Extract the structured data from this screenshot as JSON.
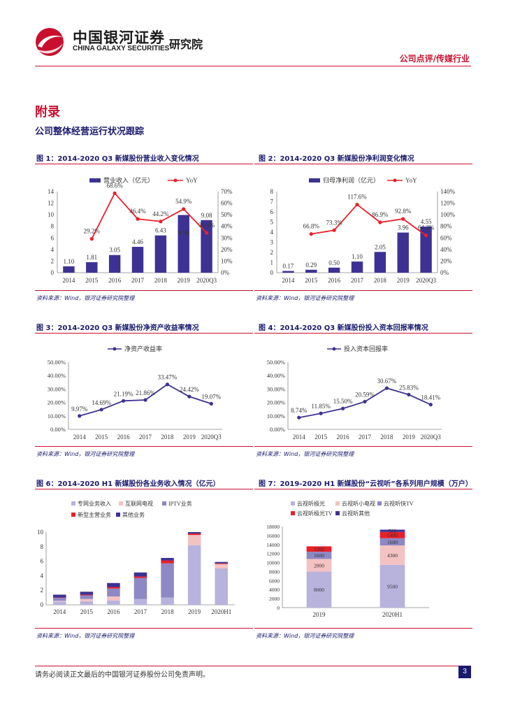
{
  "header": {
    "brand_cn": "中国银河证券",
    "brand_en": "CHINA GALAXY SECURITIES",
    "institute": "研究院",
    "tag": "公司点评/传媒行业"
  },
  "section": {
    "title": "附录",
    "subtitle": "公司整体经营运行状况跟踪"
  },
  "footer": {
    "disclaimer": "请务必阅读正文最后的中国银河证券股份公司免责声明。",
    "page": "3"
  },
  "colors": {
    "navy": "#3d3294",
    "red": "#e8202a",
    "brand_red": "#c8102e"
  },
  "figures": [
    {
      "title": "图 1：2014-2020 Q3 新媒股份营业收入变化情况",
      "source": "资料来源：Wind，银河证券研究院整理"
    },
    {
      "title": "图 2：2014-2020 Q3 新媒股份净利润变化情况",
      "source": "资料来源：Wind，银河证券研究院整理"
    },
    {
      "title": "图 3：2014-2020 Q3 新媒股份净资产收益率情况",
      "source": "资料来源：Wind，银河证券研究院整理"
    },
    {
      "title": "图 4：2014-2020 Q3 新媒股份投入资本回报率情况",
      "source": "资料来源：Wind，银河证券研究院整理"
    },
    {
      "title": "图 6：2014-2020 H1 新媒股份各业务收入情况（亿元）",
      "source": "资料来源：Wind，银河证券研究院整理"
    },
    {
      "title": "图 7：2019-2020 H1 新媒股份“云视听”各系列用户规模（万户）",
      "source": "资料来源：Wind，银河证券研究院整理"
    }
  ],
  "chart_data": [
    {
      "type": "bar+line",
      "categories": [
        "2014",
        "2015",
        "2016",
        "2017",
        "2018",
        "2019",
        "2020Q3"
      ],
      "bar": {
        "name": "营业收入（亿元）",
        "values": [
          1.1,
          1.81,
          3.05,
          4.46,
          6.43,
          9.96,
          9.08
        ],
        "labels": [
          "1.10",
          "1.81",
          "3.05",
          "4.46",
          "6.43",
          "",
          "9.08"
        ]
      },
      "line": {
        "name": "YoY",
        "values": [
          null,
          29.2,
          68.6,
          46.4,
          44.2,
          54.9,
          34.4
        ],
        "labels": [
          "",
          "29.2%",
          "68.6%",
          "46.4%",
          "44.2%",
          "54.9%",
          "34.4%"
        ]
      },
      "bar_axis": {
        "min": 0,
        "max": 14,
        "ticks": [
          "0",
          "2",
          "4",
          "6",
          "8",
          "10",
          "12",
          "14"
        ]
      },
      "line_axis": {
        "min": 0,
        "max": 70,
        "ticks": [
          "0%",
          "10%",
          "20%",
          "30%",
          "40%",
          "50%",
          "60%",
          "70%"
        ]
      },
      "extra_label": "9.96"
    },
    {
      "type": "bar+line",
      "categories": [
        "2014",
        "2015",
        "2016",
        "2017",
        "2018",
        "2019",
        "2020Q3"
      ],
      "bar": {
        "name": "归母净利润（亿元）",
        "values": [
          0.17,
          0.29,
          0.5,
          1.1,
          2.05,
          3.96,
          4.55
        ],
        "labels": [
          "0.17",
          "0.29",
          "0.50",
          "1.10",
          "2.05",
          "3.96",
          "4.55"
        ]
      },
      "line": {
        "name": "YoY",
        "values": [
          null,
          66.8,
          73.3,
          117.6,
          86.9,
          92.8,
          64.3
        ],
        "labels": [
          "",
          "66.8%",
          "73.3%",
          "117.6%",
          "86.9%",
          "92.8%",
          "64.3%"
        ]
      },
      "bar_axis": {
        "min": 0,
        "max": 8,
        "ticks": [
          "0",
          "1",
          "2",
          "3",
          "4",
          "5",
          "6",
          "7",
          "8"
        ]
      },
      "line_axis": {
        "min": 0,
        "max": 140,
        "ticks": [
          "0%",
          "20%",
          "40%",
          "60%",
          "80%",
          "100%",
          "120%",
          "140%"
        ]
      }
    },
    {
      "type": "line",
      "name": "净资产收益率",
      "categories": [
        "2014",
        "2015",
        "2016",
        "2017",
        "2018",
        "2019",
        "2020Q3"
      ],
      "values": [
        9.97,
        14.69,
        21.19,
        21.86,
        33.47,
        24.42,
        19.07
      ],
      "labels": [
        "9.97%",
        "14.69%",
        "21.19%",
        "21.86%",
        "33.47%",
        "24.42%",
        "19.07%"
      ],
      "axis": {
        "min": 0,
        "max": 50,
        "ticks": [
          "0.00%",
          "10.00%",
          "20.00%",
          "30.00%",
          "40.00%",
          "50.00%"
        ]
      }
    },
    {
      "type": "line",
      "name": "投入资本回报率",
      "categories": [
        "2014",
        "2015",
        "2016",
        "2017",
        "2018",
        "2019",
        "2020Q3"
      ],
      "values": [
        8.74,
        11.85,
        15.5,
        20.59,
        30.67,
        25.83,
        18.41
      ],
      "labels": [
        "8.74%",
        "11.85%",
        "15.50%",
        "20.59%",
        "30.67%",
        "25.83%",
        "18.41%"
      ],
      "axis": {
        "min": 0,
        "max": 50,
        "ticks": [
          "0.00%",
          "10.00%",
          "20.00%",
          "30.00%",
          "40.00%",
          "50.00%"
        ]
      }
    },
    {
      "type": "stacked-bar",
      "categories": [
        "2014",
        "2015",
        "2016",
        "2017",
        "2018",
        "2019",
        "2020H1"
      ],
      "series": [
        {
          "name": "专网业务收入",
          "color": "#b8b3dd",
          "values": [
            0.45,
            0.5,
            0.6,
            0.8,
            1.0,
            8.2,
            5.0
          ]
        },
        {
          "name": "互联网电视",
          "color": "#f4c2c2",
          "values": [
            0.1,
            0.3,
            0.55,
            0.0,
            0.0,
            1.4,
            0.6
          ]
        },
        {
          "name": "IPTV业务",
          "color": "#8e88c4",
          "values": [
            0.4,
            0.5,
            1.1,
            2.9,
            4.7,
            0.0,
            0.0
          ]
        },
        {
          "name": "新型主营业务",
          "color": "#e8202a",
          "values": [
            0.05,
            0.1,
            0.2,
            0.2,
            0.4,
            0.2,
            0.1
          ]
        },
        {
          "name": "其他业务",
          "color": "#3d3294",
          "values": [
            0.4,
            0.4,
            0.55,
            0.55,
            0.35,
            0.2,
            0.2
          ]
        }
      ],
      "axis": {
        "min": 0,
        "max": 10,
        "ticks": [
          "0",
          "2",
          "4",
          "6",
          "8",
          "10"
        ]
      }
    },
    {
      "type": "stacked-bar",
      "categories": [
        "2019",
        "2020H1"
      ],
      "series": [
        {
          "name": "云视听极光",
          "color": "#b8b3dd",
          "values": [
            8000,
            9500
          ],
          "labels": [
            "8000",
            "9500"
          ]
        },
        {
          "name": "云视听小电视",
          "color": "#f4c2c2",
          "values": [
            2800,
            4300
          ],
          "labels": [
            "2800",
            "4300"
          ]
        },
        {
          "name": "云视听快TV",
          "color": "#8e88c4",
          "values": [
            1600,
            1600
          ],
          "labels": [
            "1600",
            "1600"
          ]
        },
        {
          "name": "云视听极光TV",
          "color": "#e8202a",
          "values": [
            1200,
            1400
          ],
          "labels": [
            "1200",
            "1400"
          ]
        },
        {
          "name": "云视听其他",
          "color": "#3d3294",
          "values": [
            0,
            500
          ],
          "labels": [
            "",
            "500"
          ]
        }
      ],
      "axis": {
        "min": 0,
        "max": 18000,
        "ticks": [
          "0",
          "2000",
          "4000",
          "6000",
          "8000",
          "10000",
          "12000",
          "14000",
          "16000",
          "18000"
        ]
      }
    }
  ]
}
